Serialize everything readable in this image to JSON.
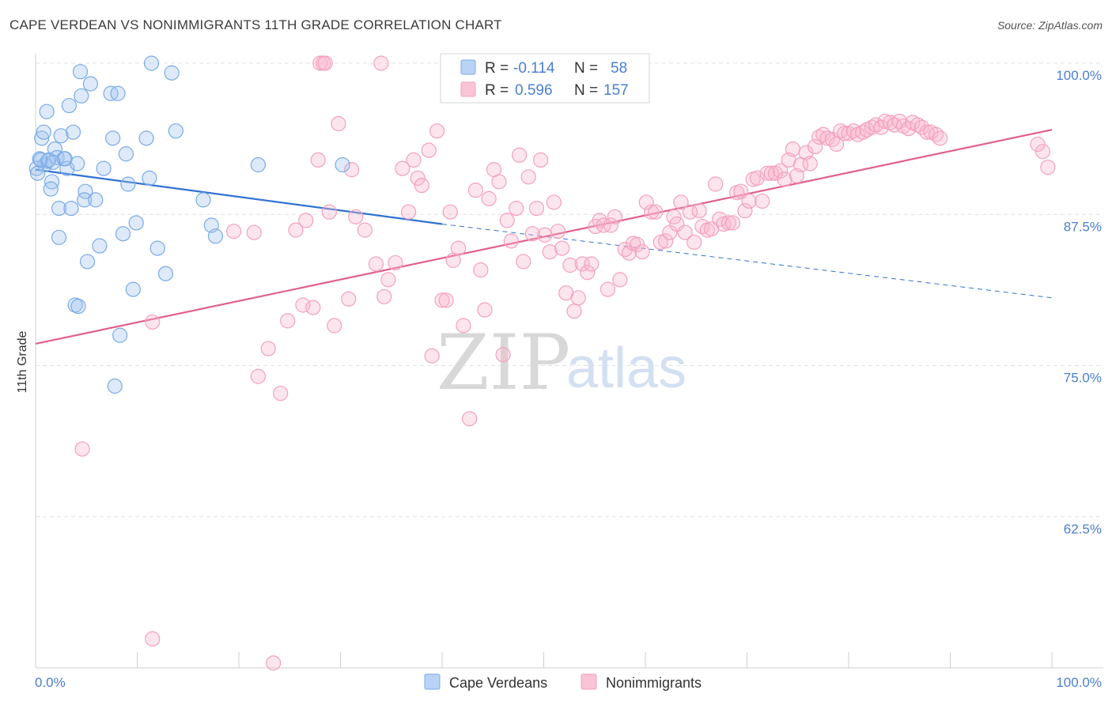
{
  "title": "CAPE VERDEAN VS NONIMMIGRANTS 11TH GRADE CORRELATION CHART",
  "source": "Source: ZipAtlas.com",
  "watermark": {
    "part1": "ZIP",
    "part2": "atlas"
  },
  "colors": {
    "blue": "#7aaae6",
    "blue_line": "#2f72d2",
    "pink": "#f2a1bc",
    "pink_line": "#e0608b",
    "axis_text": "#4a7fd0"
  },
  "legend": {
    "row1": {
      "r_label": "R = ",
      "r_value": "-0.114",
      "n_label": "N = ",
      "n_value": "58"
    },
    "row2": {
      "r_label": "R = ",
      "r_value": "0.596",
      "n_label": "N = ",
      "n_value": "157"
    }
  },
  "bottom_legend": {
    "series1": "Cape Verdeans",
    "series2": "Nonimmigrants"
  },
  "chart_data": {
    "type": "scatter",
    "title": "CAPE VERDEAN VS NONIMMIGRANTS 11TH GRADE CORRELATION CHART",
    "xlabel": "",
    "ylabel": "11th Grade",
    "xlim": [
      0,
      100
    ],
    "ylim": [
      50,
      100
    ],
    "x_tick_labels": [
      "0.0%",
      "100.0%"
    ],
    "y_ticks": [
      62.5,
      75.0,
      87.5,
      100.0
    ],
    "y_tick_labels": [
      "62.5%",
      "75.0%",
      "87.5%",
      "100.0%"
    ],
    "grid": true,
    "legend_position": "top-center",
    "series": [
      {
        "name": "Cape Verdeans",
        "r": -0.114,
        "n": 58,
        "trend": {
          "x": [
            0,
            40
          ],
          "y": [
            91.2,
            86.7
          ],
          "dashed_to": [
            100,
            80.6
          ]
        },
        "points": [
          [
            0.1,
            91.3
          ],
          [
            0.4,
            92.1
          ],
          [
            0.6,
            93.8
          ],
          [
            0.9,
            91.6
          ],
          [
            1.2,
            91.9
          ],
          [
            0.8,
            94.3
          ],
          [
            1.1,
            96.0
          ],
          [
            1.6,
            90.2
          ],
          [
            1.5,
            89.6
          ],
          [
            1.9,
            92.9
          ],
          [
            2.1,
            92.2
          ],
          [
            2.3,
            88.0
          ],
          [
            2.5,
            94.0
          ],
          [
            2.8,
            92.1
          ],
          [
            2.3,
            85.6
          ],
          [
            3.1,
            91.3
          ],
          [
            3.3,
            96.5
          ],
          [
            3.5,
            88.0
          ],
          [
            3.7,
            94.3
          ],
          [
            4.1,
            91.7
          ],
          [
            3.9,
            80.0
          ],
          [
            4.2,
            79.9
          ],
          [
            4.4,
            99.3
          ],
          [
            4.5,
            97.3
          ],
          [
            4.9,
            89.4
          ],
          [
            4.8,
            88.7
          ],
          [
            5.1,
            83.6
          ],
          [
            5.4,
            98.3
          ],
          [
            5.9,
            88.7
          ],
          [
            6.3,
            84.9
          ],
          [
            6.7,
            91.3
          ],
          [
            7.4,
            97.5
          ],
          [
            7.6,
            93.8
          ],
          [
            7.8,
            73.3
          ],
          [
            8.1,
            97.5
          ],
          [
            8.6,
            85.9
          ],
          [
            8.9,
            92.5
          ],
          [
            9.1,
            90.0
          ],
          [
            9.6,
            81.3
          ],
          [
            9.9,
            86.8
          ],
          [
            8.3,
            77.5
          ],
          [
            10.9,
            93.8
          ],
          [
            11.2,
            90.5
          ],
          [
            12.0,
            84.7
          ],
          [
            12.8,
            82.6
          ],
          [
            11.4,
            100.0
          ],
          [
            13.4,
            99.2
          ],
          [
            13.8,
            94.4
          ],
          [
            16.5,
            88.7
          ],
          [
            17.3,
            86.6
          ],
          [
            17.7,
            85.7
          ],
          [
            21.9,
            91.6
          ],
          [
            30.2,
            91.6
          ],
          [
            0.5,
            92.0
          ],
          [
            1.3,
            92.0
          ],
          [
            2.9,
            92.1
          ],
          [
            1.7,
            91.8
          ],
          [
            0.2,
            90.9
          ]
        ]
      },
      {
        "name": "Nonimmigrants",
        "r": 0.596,
        "n": 157,
        "trend": {
          "x": [
            0,
            100
          ],
          "y": [
            76.8,
            94.5
          ]
        },
        "points": [
          [
            4.6,
            68.1
          ],
          [
            11.5,
            52.4
          ],
          [
            11.5,
            78.6
          ],
          [
            19.5,
            86.1
          ],
          [
            21.5,
            86.0
          ],
          [
            21.9,
            74.1
          ],
          [
            22.9,
            76.4
          ],
          [
            24.1,
            72.7
          ],
          [
            23.4,
            50.4
          ],
          [
            24.8,
            78.7
          ],
          [
            25.6,
            86.2
          ],
          [
            26.3,
            80.0
          ],
          [
            26.6,
            87.0
          ],
          [
            27.3,
            79.8
          ],
          [
            27.8,
            92.0
          ],
          [
            28.0,
            100.0
          ],
          [
            28.3,
            100.0
          ],
          [
            28.5,
            100.0
          ],
          [
            28.9,
            87.7
          ],
          [
            29.4,
            78.3
          ],
          [
            29.8,
            95.0
          ],
          [
            30.8,
            80.5
          ],
          [
            31.1,
            91.2
          ],
          [
            31.5,
            87.3
          ],
          [
            32.4,
            86.2
          ],
          [
            33.5,
            83.4
          ],
          [
            34.0,
            100.0
          ],
          [
            34.3,
            80.7
          ],
          [
            34.7,
            82.1
          ],
          [
            35.4,
            83.5
          ],
          [
            36.1,
            91.3
          ],
          [
            36.7,
            87.7
          ],
          [
            37.2,
            92.0
          ],
          [
            37.6,
            90.5
          ],
          [
            38.0,
            89.9
          ],
          [
            38.7,
            92.8
          ],
          [
            39.0,
            75.8
          ],
          [
            39.5,
            94.4
          ],
          [
            40.0,
            80.4
          ],
          [
            40.4,
            80.4
          ],
          [
            40.8,
            87.7
          ],
          [
            41.1,
            83.7
          ],
          [
            41.6,
            84.7
          ],
          [
            42.1,
            78.3
          ],
          [
            42.7,
            70.6
          ],
          [
            43.3,
            89.5
          ],
          [
            43.8,
            82.9
          ],
          [
            44.2,
            79.6
          ],
          [
            44.6,
            88.8
          ],
          [
            45.1,
            91.2
          ],
          [
            45.6,
            90.2
          ],
          [
            46.0,
            75.9
          ],
          [
            46.4,
            87.0
          ],
          [
            46.8,
            85.3
          ],
          [
            47.3,
            88.0
          ],
          [
            47.6,
            92.4
          ],
          [
            48.0,
            83.6
          ],
          [
            48.5,
            90.6
          ],
          [
            48.9,
            85.9
          ],
          [
            49.3,
            88.0
          ],
          [
            49.7,
            92.0
          ],
          [
            50.1,
            85.8
          ],
          [
            50.6,
            84.4
          ],
          [
            51.0,
            88.5
          ],
          [
            51.4,
            86.1
          ],
          [
            51.8,
            84.7
          ],
          [
            52.2,
            81.0
          ],
          [
            52.6,
            83.3
          ],
          [
            53.0,
            79.5
          ],
          [
            53.4,
            80.6
          ],
          [
            53.8,
            83.4
          ],
          [
            54.3,
            82.7
          ],
          [
            54.7,
            83.4
          ],
          [
            55.1,
            86.5
          ],
          [
            55.5,
            87.0
          ],
          [
            55.9,
            86.6
          ],
          [
            56.3,
            81.3
          ],
          [
            56.6,
            86.6
          ],
          [
            57.0,
            87.3
          ],
          [
            57.5,
            82.1
          ],
          [
            58.0,
            84.6
          ],
          [
            58.4,
            84.3
          ],
          [
            58.8,
            85.1
          ],
          [
            59.2,
            85.0
          ],
          [
            59.7,
            84.4
          ],
          [
            60.1,
            88.5
          ],
          [
            60.6,
            87.7
          ],
          [
            61.0,
            87.7
          ],
          [
            61.5,
            85.2
          ],
          [
            62.0,
            85.3
          ],
          [
            62.4,
            86.0
          ],
          [
            62.8,
            87.3
          ],
          [
            63.1,
            86.7
          ],
          [
            63.5,
            88.5
          ],
          [
            63.9,
            86.0
          ],
          [
            64.4,
            87.7
          ],
          [
            64.8,
            85.2
          ],
          [
            65.3,
            87.8
          ],
          [
            65.6,
            86.5
          ],
          [
            66.1,
            86.2
          ],
          [
            66.5,
            86.3
          ],
          [
            66.9,
            90.0
          ],
          [
            67.3,
            87.1
          ],
          [
            67.7,
            86.7
          ],
          [
            68.2,
            86.8
          ],
          [
            68.6,
            86.8
          ],
          [
            69.0,
            89.3
          ],
          [
            69.4,
            89.4
          ],
          [
            69.8,
            87.8
          ],
          [
            70.2,
            88.6
          ],
          [
            70.6,
            90.4
          ],
          [
            71.0,
            90.5
          ],
          [
            71.5,
            88.6
          ],
          [
            72.0,
            90.9
          ],
          [
            72.4,
            90.9
          ],
          [
            72.8,
            90.9
          ],
          [
            73.3,
            91.1
          ],
          [
            73.7,
            90.4
          ],
          [
            74.1,
            92.0
          ],
          [
            74.5,
            92.9
          ],
          [
            74.9,
            90.7
          ],
          [
            75.3,
            91.6
          ],
          [
            75.8,
            92.6
          ],
          [
            76.2,
            91.7
          ],
          [
            76.7,
            93.1
          ],
          [
            77.1,
            93.9
          ],
          [
            77.5,
            94.1
          ],
          [
            77.9,
            93.8
          ],
          [
            78.4,
            93.7
          ],
          [
            78.8,
            93.3
          ],
          [
            79.2,
            94.4
          ],
          [
            79.6,
            94.2
          ],
          [
            80.0,
            94.2
          ],
          [
            80.5,
            94.4
          ],
          [
            80.9,
            94.1
          ],
          [
            81.4,
            94.3
          ],
          [
            81.8,
            94.5
          ],
          [
            82.3,
            94.7
          ],
          [
            82.7,
            94.9
          ],
          [
            83.2,
            94.7
          ],
          [
            83.6,
            95.2
          ],
          [
            84.1,
            95.1
          ],
          [
            84.5,
            94.9
          ],
          [
            85.0,
            95.2
          ],
          [
            85.4,
            94.8
          ],
          [
            85.9,
            94.6
          ],
          [
            86.3,
            95.1
          ],
          [
            86.8,
            94.9
          ],
          [
            87.2,
            94.7
          ],
          [
            87.7,
            94.3
          ],
          [
            88.1,
            94.3
          ],
          [
            88.6,
            94.1
          ],
          [
            89.0,
            93.8
          ],
          [
            99.6,
            91.4
          ],
          [
            99.1,
            92.7
          ],
          [
            98.6,
            93.3
          ]
        ]
      }
    ]
  }
}
